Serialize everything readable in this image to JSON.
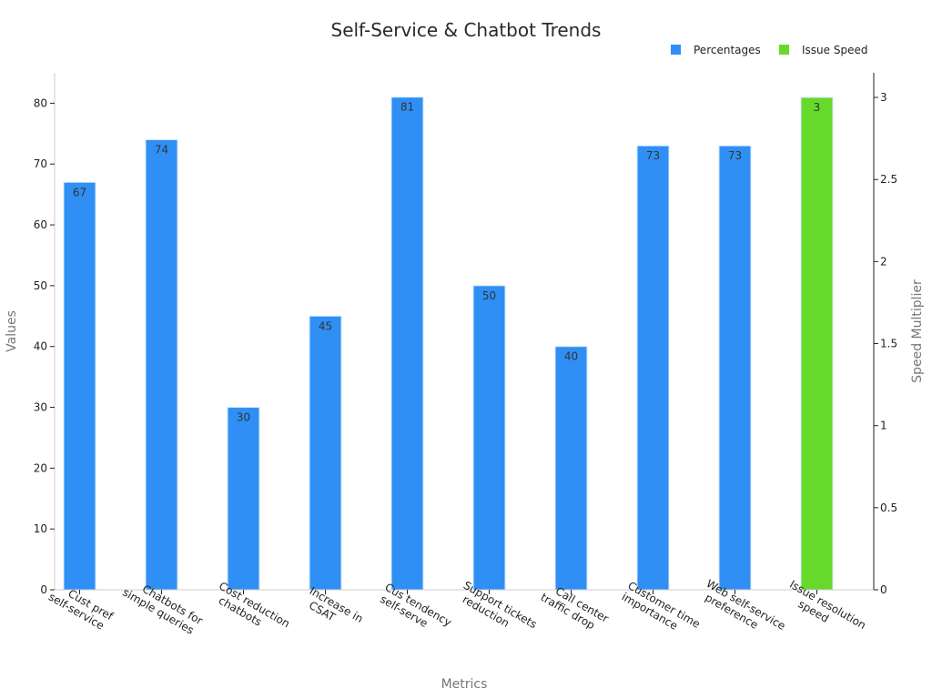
{
  "chart_data": {
    "type": "bar",
    "title": "Self-Service & Chatbot Trends",
    "xlabel": "Metrics",
    "ylabel": "Values",
    "y2label": "Speed Multiplier",
    "categories": [
      [
        "Cust pref",
        "self-service"
      ],
      [
        "Chatbots for",
        "simple queries"
      ],
      [
        "Cost reduction",
        "chatbots"
      ],
      [
        "Increase in",
        "CSAT"
      ],
      [
        "Cus tendency",
        "self-serve"
      ],
      [
        "Support tickets",
        "reduction"
      ],
      [
        "Call center",
        "traffic drop"
      ],
      [
        "Customer time",
        "importance"
      ],
      [
        "Web self-service",
        "preference"
      ],
      [
        "Issue resolution",
        "speed"
      ]
    ],
    "series": [
      {
        "name": "Percentages",
        "axis": "left",
        "color": "#2f8ff5",
        "values": [
          67,
          74,
          30,
          45,
          81,
          50,
          40,
          73,
          73,
          null
        ]
      },
      {
        "name": "Issue Speed",
        "axis": "right",
        "color": "#66d92a",
        "values": [
          null,
          null,
          null,
          null,
          null,
          null,
          null,
          null,
          null,
          3
        ]
      }
    ],
    "ylim": [
      0,
      85
    ],
    "y2lim": [
      0,
      3.15
    ],
    "yticks": [
      0,
      10,
      20,
      30,
      40,
      50,
      60,
      70,
      80
    ],
    "y2ticks": [
      "0",
      "0.5",
      "1",
      "1.5",
      "2",
      "2.5",
      "3"
    ],
    "grid": false,
    "legend_position": "top-right"
  }
}
